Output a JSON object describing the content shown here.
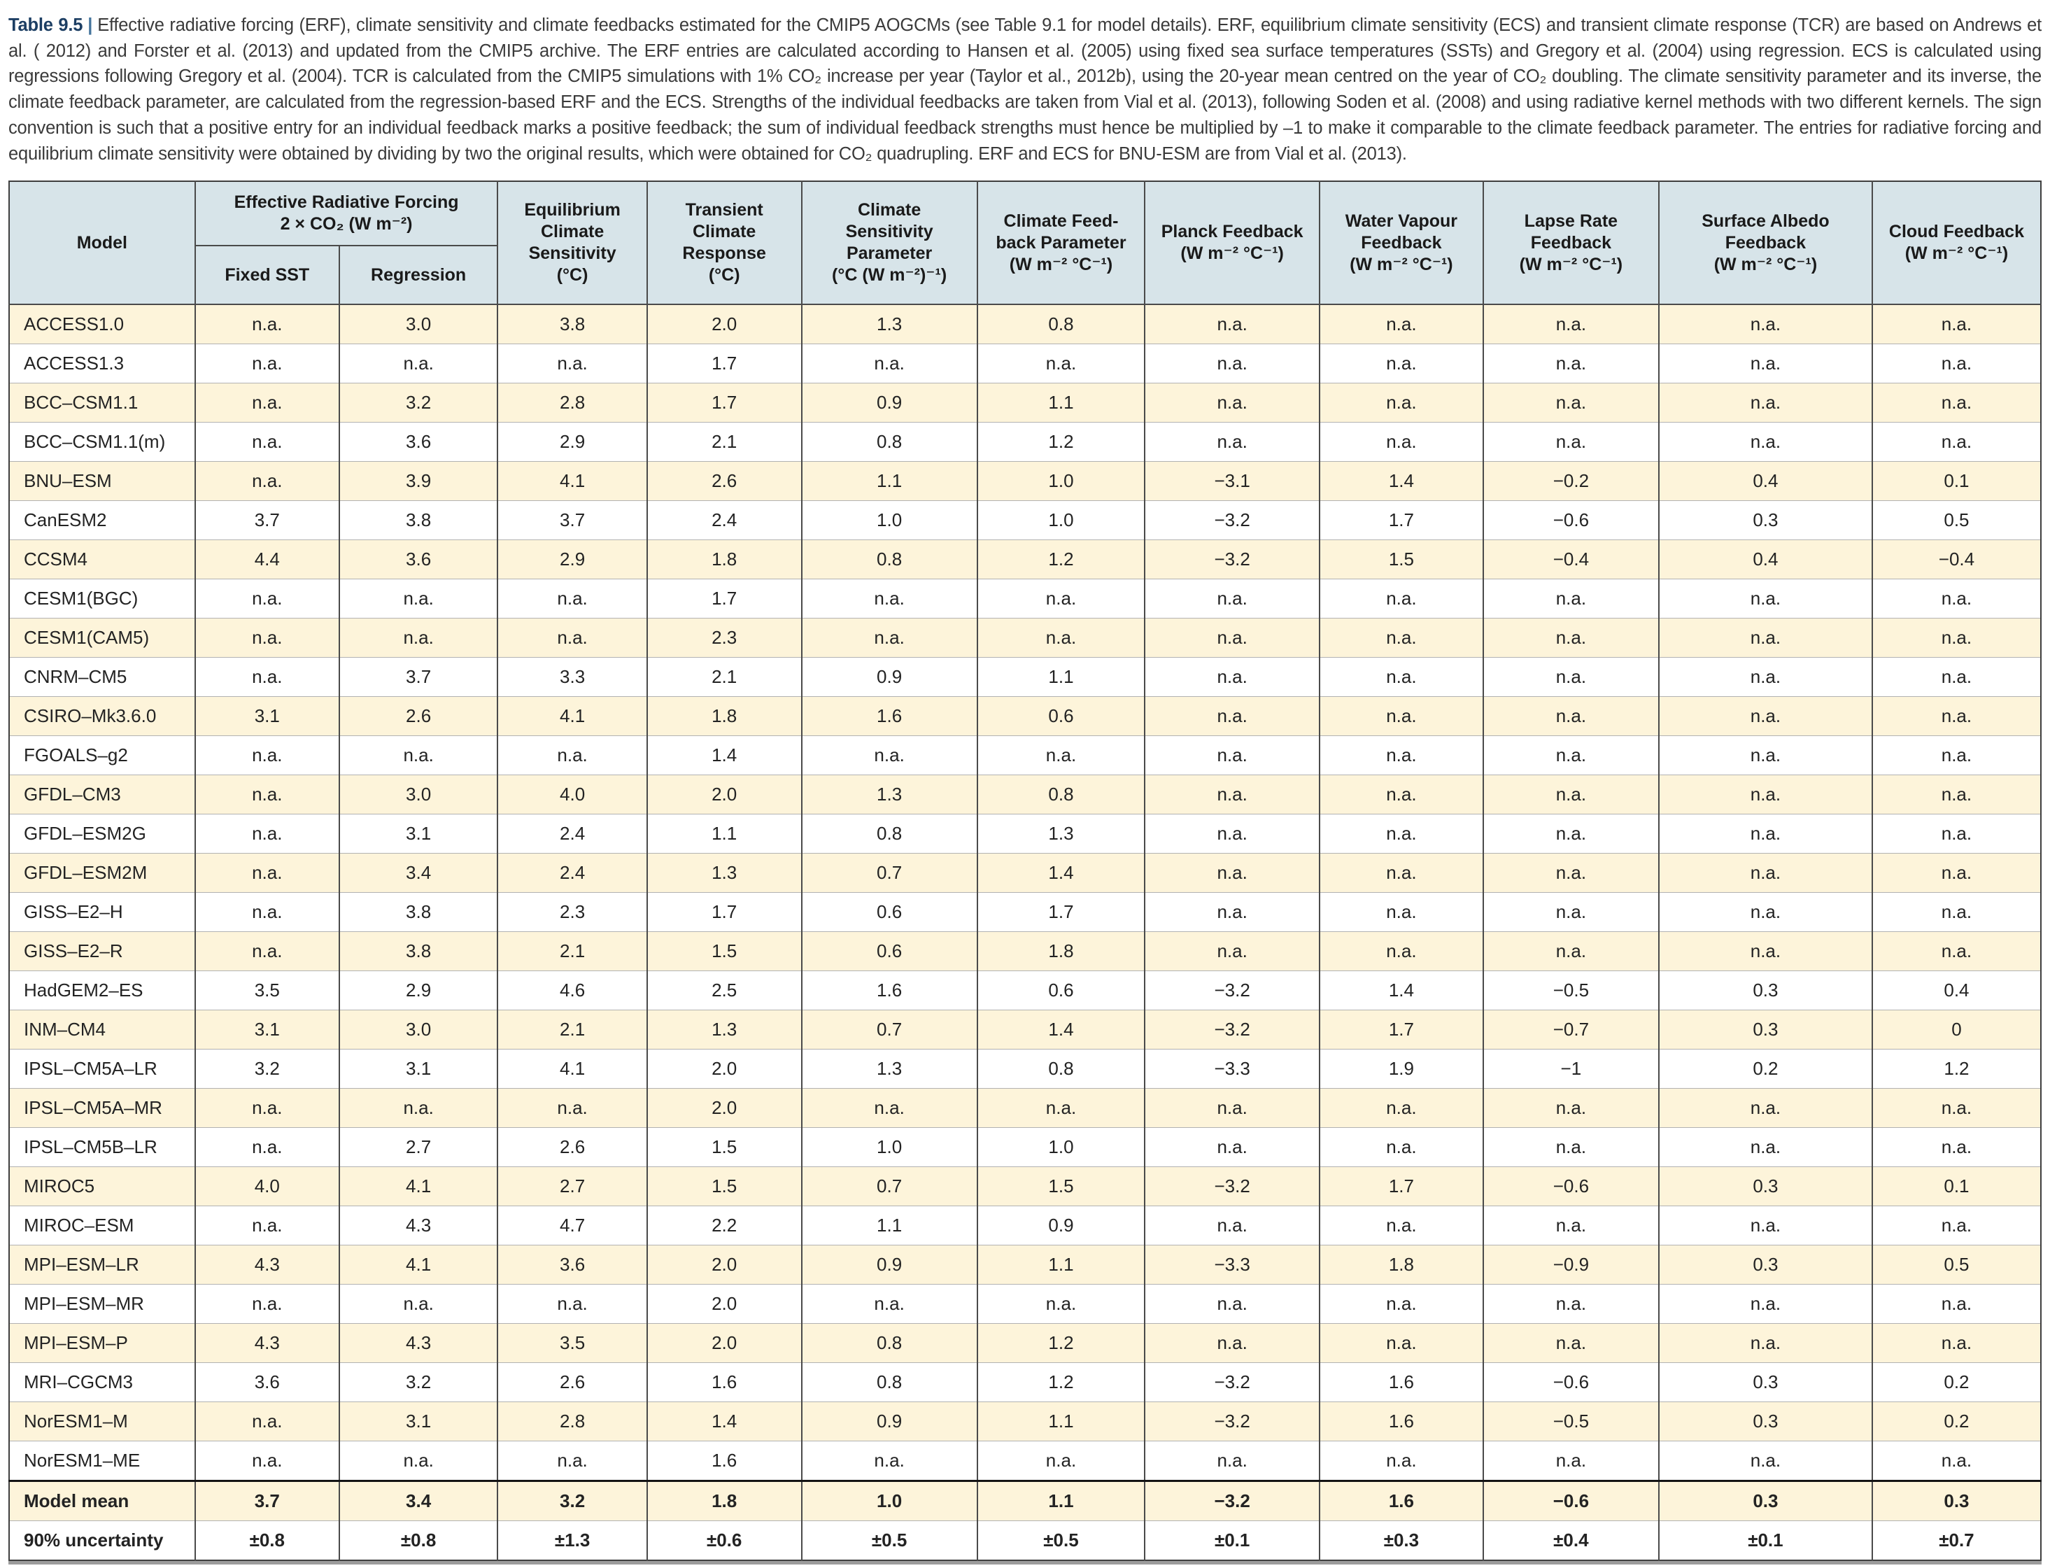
{
  "caption": {
    "label": "Table 9.5",
    "separator": "|",
    "text": "Effective radiative forcing (ERF), climate sensitivity and climate feedbacks estimated for the CMIP5 AOGCMs (see Table 9.1 for model details). ERF, equilibrium climate sensitivity (ECS) and transient climate response (TCR) are based on Andrews et al. ( 2012) and Forster et al. (2013) and updated from the CMIP5 archive. The ERF entries are calculated according to Hansen et al. (2005) using fixed sea surface temperatures (SSTs) and Gregory et al. (2004) using regression. ECS is calculated using regressions following Gregory et al. (2004). TCR is calculated from the CMIP5 simulations with 1% CO₂ increase per year (Taylor et al., 2012b), using the 20-year mean centred on the year of CO₂ doubling. The climate sensitivity parameter and its inverse, the climate feedback parameter, are calculated from the regression-based ERF and the ECS. Strengths of the individual feedbacks are taken from Vial et al. (2013), following Soden et al. (2008) and using radiative kernel methods with two different kernels. The sign convention is such that a positive entry for an individual feedback marks a positive feedback; the sum of individual feedback strengths must hence be multiplied by –1 to make it comparable to the climate feedback parameter. The entries for radiative forcing and equilibrium climate sensitivity were obtained by dividing by two the original results, which were obtained for CO₂ quadrupling. ERF and ECS for BNU-ESM are from Vial et al. (2013)."
  },
  "table": {
    "colors": {
      "header_bg": "#d7e4e9",
      "row_stripe": "#fdf4da",
      "row_plain": "#ffffff",
      "caption_label": "#1c3e63"
    },
    "header": {
      "model": "Model",
      "erf_group": "Effective Radiative Forcing\n2 × CO₂ (W m⁻²)",
      "fixed_sst": "Fixed SST",
      "regression": "Regression",
      "ecs": "Equilibrium\nClimate\nSensitivity\n(°C)",
      "tcr": "Transient\nClimate\nResponse\n(°C)",
      "csp": "Climate\nSensitivity\nParameter\n(°C (W m⁻²)⁻¹)",
      "cfp": "Climate Feed-\nback Parameter\n(W m⁻² °C⁻¹)",
      "planck": "Planck Feedback\n(W m⁻² °C⁻¹)",
      "water_vapour": "Water Vapour\nFeedback\n(W m⁻² °C⁻¹)",
      "lapse_rate": "Lapse Rate\nFeedback\n(W m⁻² °C⁻¹)",
      "surface_albedo": "Surface Albedo\nFeedback\n(W m⁻² °C⁻¹)",
      "cloud": "Cloud Feedback\n(W m⁻² °C⁻¹)"
    },
    "rows": [
      {
        "model": "ACCESS1.0",
        "values": [
          "n.a.",
          "3.0",
          "3.8",
          "2.0",
          "1.3",
          "0.8",
          "n.a.",
          "n.a.",
          "n.a.",
          "n.a.",
          "n.a."
        ]
      },
      {
        "model": "ACCESS1.3",
        "values": [
          "n.a.",
          "n.a.",
          "n.a.",
          "1.7",
          "n.a.",
          "n.a.",
          "n.a.",
          "n.a.",
          "n.a.",
          "n.a.",
          "n.a."
        ]
      },
      {
        "model": "BCC–CSM1.1",
        "values": [
          "n.a.",
          "3.2",
          "2.8",
          "1.7",
          "0.9",
          "1.1",
          "n.a.",
          "n.a.",
          "n.a.",
          "n.a.",
          "n.a."
        ]
      },
      {
        "model": "BCC–CSM1.1(m)",
        "values": [
          "n.a.",
          "3.6",
          "2.9",
          "2.1",
          "0.8",
          "1.2",
          "n.a.",
          "n.a.",
          "n.a.",
          "n.a.",
          "n.a."
        ]
      },
      {
        "model": "BNU–ESM",
        "values": [
          "n.a.",
          "3.9",
          "4.1",
          "2.6",
          "1.1",
          "1.0",
          "−3.1",
          "1.4",
          "−0.2",
          "0.4",
          "0.1"
        ]
      },
      {
        "model": "CanESM2",
        "values": [
          "3.7",
          "3.8",
          "3.7",
          "2.4",
          "1.0",
          "1.0",
          "−3.2",
          "1.7",
          "−0.6",
          "0.3",
          "0.5"
        ]
      },
      {
        "model": "CCSM4",
        "values": [
          "4.4",
          "3.6",
          "2.9",
          "1.8",
          "0.8",
          "1.2",
          "−3.2",
          "1.5",
          "−0.4",
          "0.4",
          "−0.4"
        ]
      },
      {
        "model": "CESM1(BGC)",
        "values": [
          "n.a.",
          "n.a.",
          "n.a.",
          "1.7",
          "n.a.",
          "n.a.",
          "n.a.",
          "n.a.",
          "n.a.",
          "n.a.",
          "n.a."
        ]
      },
      {
        "model": "CESM1(CAM5)",
        "values": [
          "n.a.",
          "n.a.",
          "n.a.",
          "2.3",
          "n.a.",
          "n.a.",
          "n.a.",
          "n.a.",
          "n.a.",
          "n.a.",
          "n.a."
        ]
      },
      {
        "model": "CNRM–CM5",
        "values": [
          "n.a.",
          "3.7",
          "3.3",
          "2.1",
          "0.9",
          "1.1",
          "n.a.",
          "n.a.",
          "n.a.",
          "n.a.",
          "n.a."
        ]
      },
      {
        "model": "CSIRO–Mk3.6.0",
        "values": [
          "3.1",
          "2.6",
          "4.1",
          "1.8",
          "1.6",
          "0.6",
          "n.a.",
          "n.a.",
          "n.a.",
          "n.a.",
          "n.a."
        ]
      },
      {
        "model": "FGOALS–g2",
        "values": [
          "n.a.",
          "n.a.",
          "n.a.",
          "1.4",
          "n.a.",
          "n.a.",
          "n.a.",
          "n.a.",
          "n.a.",
          "n.a.",
          "n.a."
        ]
      },
      {
        "model": "GFDL–CM3",
        "values": [
          "n.a.",
          "3.0",
          "4.0",
          "2.0",
          "1.3",
          "0.8",
          "n.a.",
          "n.a.",
          "n.a.",
          "n.a.",
          "n.a."
        ]
      },
      {
        "model": "GFDL–ESM2G",
        "values": [
          "n.a.",
          "3.1",
          "2.4",
          "1.1",
          "0.8",
          "1.3",
          "n.a.",
          "n.a.",
          "n.a.",
          "n.a.",
          "n.a."
        ]
      },
      {
        "model": "GFDL–ESM2M",
        "values": [
          "n.a.",
          "3.4",
          "2.4",
          "1.3",
          "0.7",
          "1.4",
          "n.a.",
          "n.a.",
          "n.a.",
          "n.a.",
          "n.a."
        ]
      },
      {
        "model": "GISS–E2–H",
        "values": [
          "n.a.",
          "3.8",
          "2.3",
          "1.7",
          "0.6",
          "1.7",
          "n.a.",
          "n.a.",
          "n.a.",
          "n.a.",
          "n.a."
        ]
      },
      {
        "model": "GISS–E2–R",
        "values": [
          "n.a.",
          "3.8",
          "2.1",
          "1.5",
          "0.6",
          "1.8",
          "n.a.",
          "n.a.",
          "n.a.",
          "n.a.",
          "n.a."
        ]
      },
      {
        "model": "HadGEM2–ES",
        "values": [
          "3.5",
          "2.9",
          "4.6",
          "2.5",
          "1.6",
          "0.6",
          "−3.2",
          "1.4",
          "−0.5",
          "0.3",
          "0.4"
        ]
      },
      {
        "model": "INM–CM4",
        "values": [
          "3.1",
          "3.0",
          "2.1",
          "1.3",
          "0.7",
          "1.4",
          "−3.2",
          "1.7",
          "−0.7",
          "0.3",
          "0"
        ]
      },
      {
        "model": "IPSL–CM5A–LR",
        "values": [
          "3.2",
          "3.1",
          "4.1",
          "2.0",
          "1.3",
          "0.8",
          "−3.3",
          "1.9",
          "−1",
          "0.2",
          "1.2"
        ]
      },
      {
        "model": "IPSL–CM5A–MR",
        "values": [
          "n.a.",
          "n.a.",
          "n.a.",
          "2.0",
          "n.a.",
          "n.a.",
          "n.a.",
          "n.a.",
          "n.a.",
          "n.a.",
          "n.a."
        ]
      },
      {
        "model": "IPSL–CM5B–LR",
        "values": [
          "n.a.",
          "2.7",
          "2.6",
          "1.5",
          "1.0",
          "1.0",
          "n.a.",
          "n.a.",
          "n.a.",
          "n.a.",
          "n.a."
        ]
      },
      {
        "model": "MIROC5",
        "values": [
          "4.0",
          "4.1",
          "2.7",
          "1.5",
          "0.7",
          "1.5",
          "−3.2",
          "1.7",
          "−0.6",
          "0.3",
          "0.1"
        ]
      },
      {
        "model": "MIROC–ESM",
        "values": [
          "n.a.",
          "4.3",
          "4.7",
          "2.2",
          "1.1",
          "0.9",
          "n.a.",
          "n.a.",
          "n.a.",
          "n.a.",
          "n.a."
        ]
      },
      {
        "model": "MPI–ESM–LR",
        "values": [
          "4.3",
          "4.1",
          "3.6",
          "2.0",
          "0.9",
          "1.1",
          "−3.3",
          "1.8",
          "−0.9",
          "0.3",
          "0.5"
        ]
      },
      {
        "model": "MPI–ESM–MR",
        "values": [
          "n.a.",
          "n.a.",
          "n.a.",
          "2.0",
          "n.a.",
          "n.a.",
          "n.a.",
          "n.a.",
          "n.a.",
          "n.a.",
          "n.a."
        ]
      },
      {
        "model": "MPI–ESM–P",
        "values": [
          "4.3",
          "4.3",
          "3.5",
          "2.0",
          "0.8",
          "1.2",
          "n.a.",
          "n.a.",
          "n.a.",
          "n.a.",
          "n.a."
        ]
      },
      {
        "model": "MRI–CGCM3",
        "values": [
          "3.6",
          "3.2",
          "2.6",
          "1.6",
          "0.8",
          "1.2",
          "−3.2",
          "1.6",
          "−0.6",
          "0.3",
          "0.2"
        ]
      },
      {
        "model": "NorESM1–M",
        "values": [
          "n.a.",
          "3.1",
          "2.8",
          "1.4",
          "0.9",
          "1.1",
          "−3.2",
          "1.6",
          "−0.5",
          "0.3",
          "0.2"
        ]
      },
      {
        "model": "NorESM1–ME",
        "values": [
          "n.a.",
          "n.a.",
          "n.a.",
          "1.6",
          "n.a.",
          "n.a.",
          "n.a.",
          "n.a.",
          "n.a.",
          "n.a.",
          "n.a."
        ]
      }
    ],
    "footer_rows": [
      {
        "model": "Model mean",
        "values": [
          "3.7",
          "3.4",
          "3.2",
          "1.8",
          "1.0",
          "1.1",
          "−3.2",
          "1.6",
          "−0.6",
          "0.3",
          "0.3"
        ]
      },
      {
        "model": "90% uncertainty",
        "values": [
          "±0.8",
          "±0.8",
          "±1.3",
          "±0.6",
          "±0.5",
          "±0.5",
          "±0.1",
          "±0.3",
          "±0.4",
          "±0.1",
          "±0.7"
        ]
      }
    ]
  }
}
